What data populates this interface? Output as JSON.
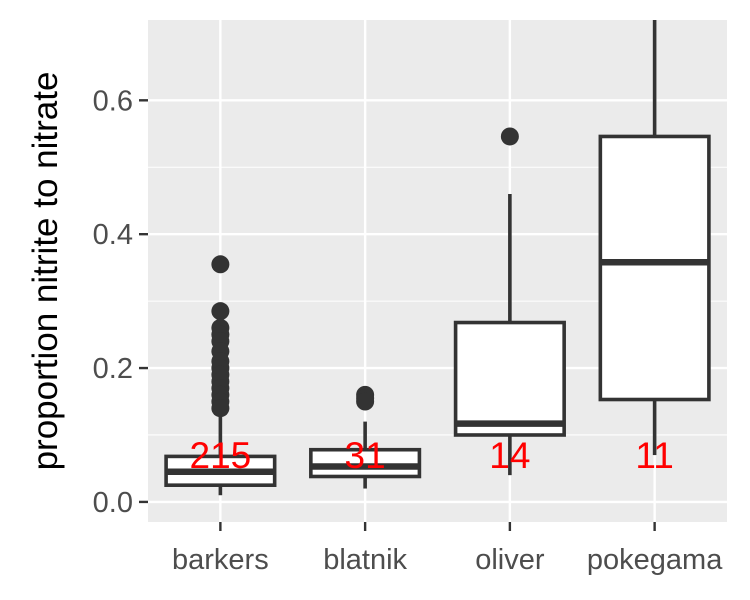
{
  "chart_data": {
    "type": "box",
    "title": "",
    "xlabel": "",
    "ylabel": "proportion nitrite to nitrate",
    "ylim": [
      -0.03,
      0.72
    ],
    "yticks": [
      0.0,
      0.2,
      0.4,
      0.6
    ],
    "ytick_labels": [
      "0.0",
      "0.2",
      "0.4",
      "0.6"
    ],
    "grid": true,
    "categories": [
      "barkers",
      "blatnik",
      "oliver",
      "pokegama"
    ],
    "boxes": [
      {
        "name": "barkers",
        "whisker_low": 0.01,
        "q1": 0.025,
        "median": 0.045,
        "q3": 0.068,
        "whisker_high": 0.13,
        "outliers": [
          0.355,
          0.285,
          0.26,
          0.25,
          0.24,
          0.225,
          0.21,
          0.2,
          0.19,
          0.18,
          0.17,
          0.16,
          0.15,
          0.14
        ]
      },
      {
        "name": "blatnik",
        "whisker_low": 0.02,
        "q1": 0.038,
        "median": 0.053,
        "q3": 0.078,
        "whisker_high": 0.12,
        "outliers": [
          0.16,
          0.155,
          0.15
        ]
      },
      {
        "name": "oliver",
        "whisker_low": 0.04,
        "q1": 0.1,
        "median": 0.117,
        "q3": 0.268,
        "whisker_high": 0.46,
        "outliers": [
          0.546
        ]
      },
      {
        "name": "pokegama",
        "whisker_low": 0.07,
        "q1": 0.153,
        "median": 0.358,
        "q3": 0.546,
        "whisker_high": 0.72,
        "outliers": []
      }
    ],
    "count_labels": [
      {
        "category": "barkers",
        "text": "215"
      },
      {
        "category": "blatnik",
        "text": "31"
      },
      {
        "category": "oliver",
        "text": "14"
      },
      {
        "category": "pokegama",
        "text": "11"
      }
    ],
    "count_label_y": 0.07,
    "colors": {
      "panel": "#ebebeb",
      "grid": "#ffffff",
      "box_line": "#333333",
      "box_fill": "#ffffff",
      "count_label": "#ff0000",
      "tick_text": "#4d4d4d"
    }
  }
}
